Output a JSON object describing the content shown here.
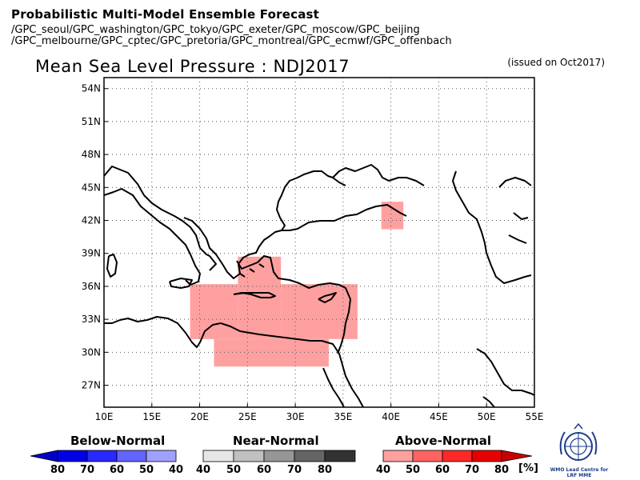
{
  "header": {
    "title": "Probabilistic Multi-Model Ensemble Forecast",
    "centres_line1": "/GPC_seoul/GPC_washington/GPC_tokyo/GPC_exeter/GPC_moscow/GPC_beijing",
    "centres_line2": "/GPC_melbourne/GPC_cptec/GPC_pretoria/GPC_montreal/GPC_ecmwf/GPC_offenbach"
  },
  "map": {
    "title": "Mean Sea Level Pressure : NDJ2017",
    "issued": "(issued on Oct2017)",
    "lon_range": [
      10,
      55
    ],
    "lat_range": [
      25,
      55
    ],
    "lon_ticks": [
      "10E",
      "15E",
      "20E",
      "25E",
      "30E",
      "35E",
      "40E",
      "45E",
      "50E",
      "55E"
    ],
    "lat_ticks": [
      "27N",
      "30N",
      "33N",
      "36N",
      "39N",
      "42N",
      "45N",
      "48N",
      "51N",
      "54N"
    ],
    "grid": "dotted",
    "above_normal_regions": [
      {
        "category": "40-50",
        "lon": [
          19,
          24
        ],
        "lat": [
          31.2,
          36.2
        ]
      },
      {
        "category": "40-50",
        "lon": [
          24,
          28.5
        ],
        "lat": [
          31.2,
          38.7
        ]
      },
      {
        "category": "40-50",
        "lon": [
          28.5,
          36.5
        ],
        "lat": [
          31.2,
          36.2
        ]
      },
      {
        "category": "40-50",
        "lon": [
          21.5,
          33.5
        ],
        "lat": [
          28.7,
          31.2
        ]
      },
      {
        "category": "40-50",
        "lon": [
          39,
          41.3
        ],
        "lat": [
          41.2,
          43.7
        ]
      }
    ]
  },
  "legend": {
    "below": {
      "title": "Below-Normal",
      "labels": [
        "80",
        "70",
        "60",
        "50",
        "40"
      ],
      "colors": [
        "#0000c8",
        "#0000e6",
        "#2828ff",
        "#6464ff",
        "#a0a0ff"
      ]
    },
    "near": {
      "title": "Near-Normal",
      "labels": [
        "40",
        "50",
        "60",
        "70",
        "80"
      ],
      "colors": [
        "#e6e6e6",
        "#c0c0c0",
        "#969696",
        "#646464",
        "#323232"
      ]
    },
    "above": {
      "title": "Above-Normal",
      "labels": [
        "40",
        "50",
        "60",
        "70",
        "80"
      ],
      "colors": [
        "#ffa0a0",
        "#ff6464",
        "#ff2828",
        "#e60000",
        "#c80000"
      ]
    },
    "units": "[%]"
  },
  "logo": {
    "text": "WMO Lead Centre for LRF MME"
  }
}
